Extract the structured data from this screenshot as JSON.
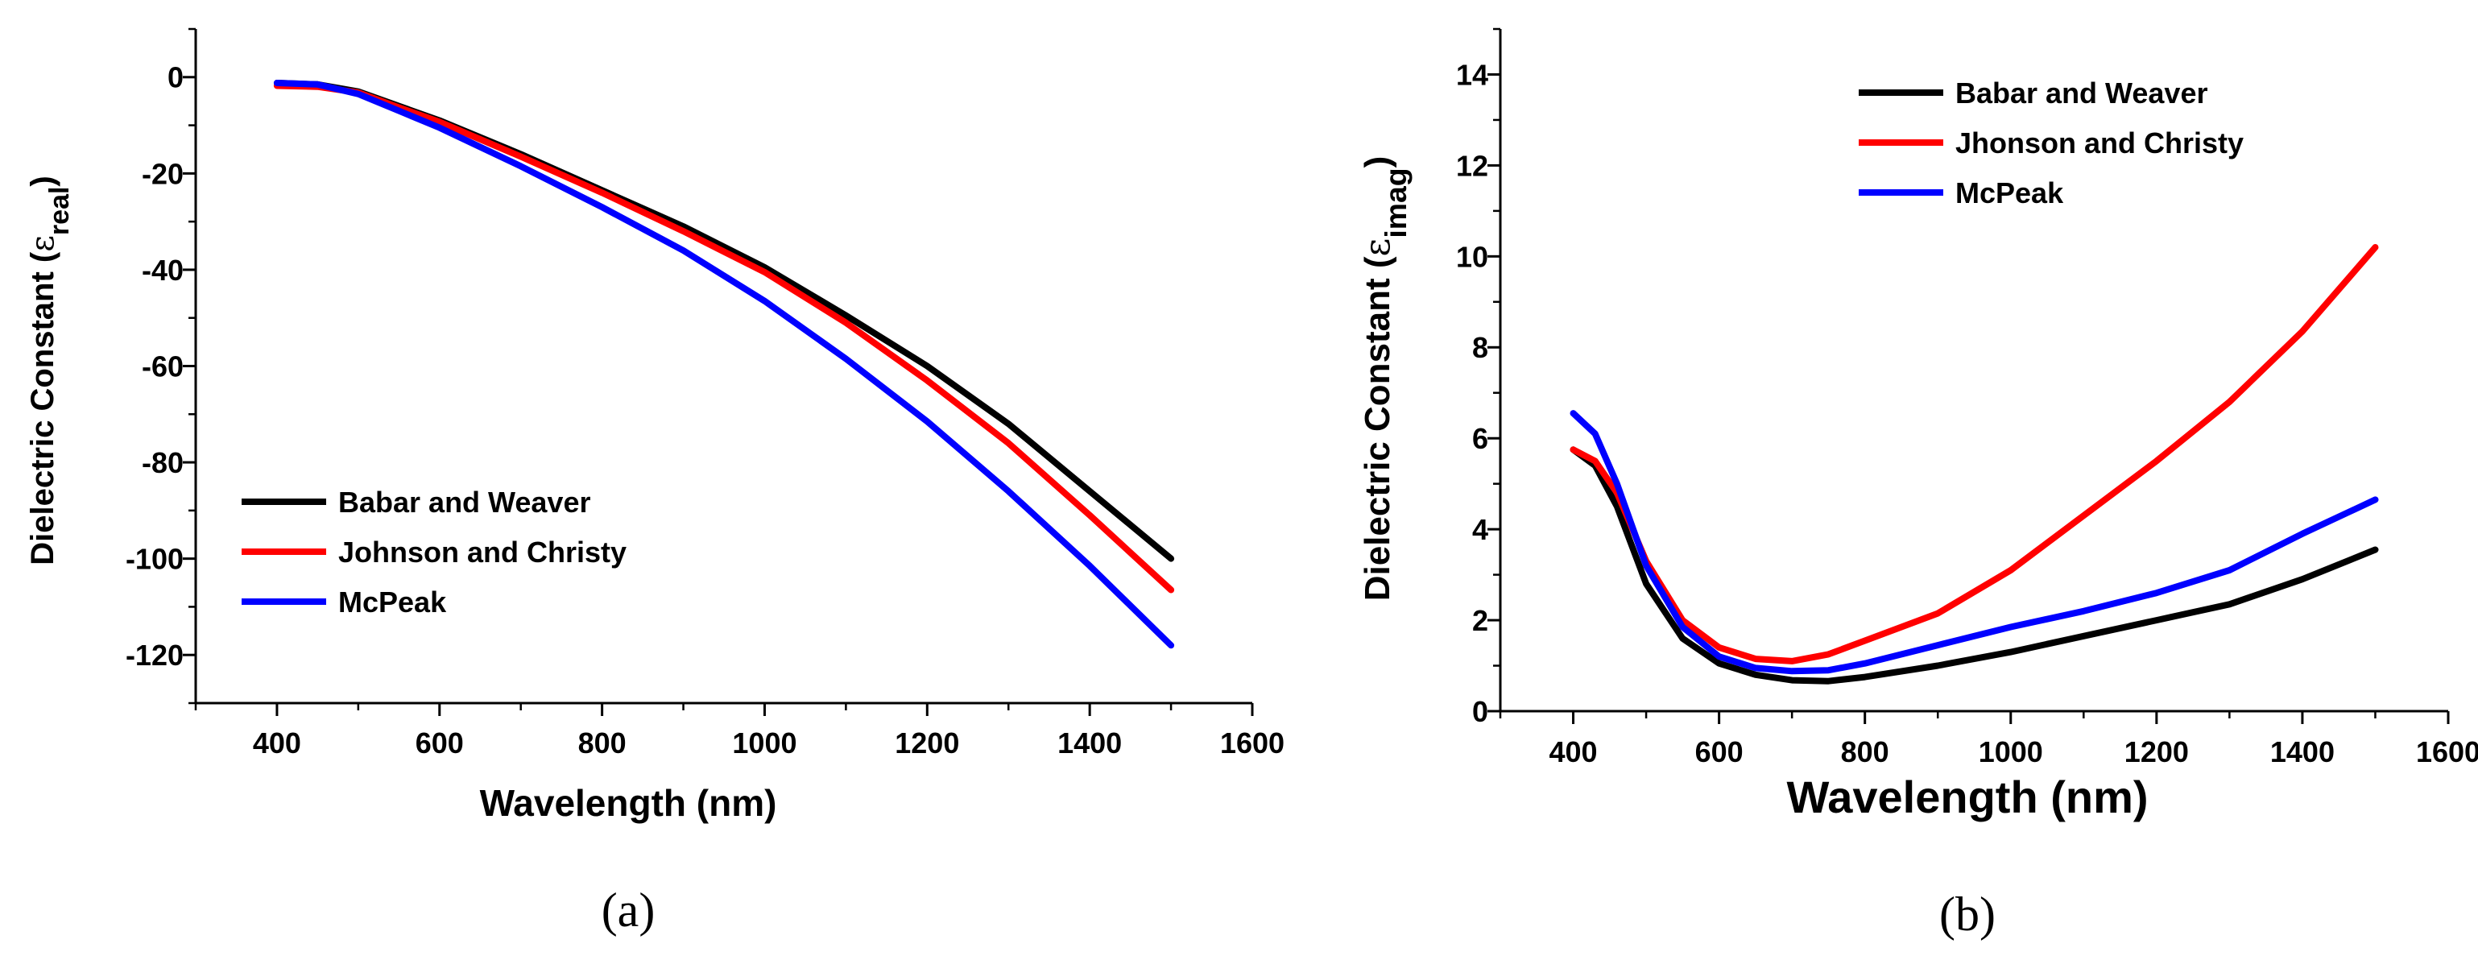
{
  "chart_data": [
    {
      "type": "line",
      "caption": "(a)",
      "xlabel": "Wavelength (nm)",
      "ylabel_main": "Dielectric Constant (",
      "ylabel_symbol": "ε",
      "ylabel_sub": "real",
      "ylabel_close": ")",
      "xlim": [
        300,
        1600
      ],
      "ylim": [
        -130,
        10
      ],
      "xticks": [
        400,
        600,
        800,
        1000,
        1200,
        1400,
        1600
      ],
      "yticks": [
        0,
        -20,
        -40,
        -60,
        -80,
        -100,
        -120
      ],
      "x_minor_step": 100,
      "y_minor_step": 10,
      "legend_position": "bottom-left",
      "series": [
        {
          "name": "Babar and Weaver",
          "color": "#000000",
          "x": [
            400,
            450,
            500,
            550,
            600,
            700,
            800,
            900,
            1000,
            1100,
            1200,
            1300,
            1400,
            1500
          ],
          "values": [
            -1.2,
            -1.5,
            -3,
            -6,
            -9,
            -16,
            -23.5,
            -31,
            -39.5,
            -49.5,
            -60,
            -72,
            -86,
            -100
          ]
        },
        {
          "name": "Johnson and Christy",
          "color": "#ff0000",
          "x": [
            400,
            450,
            500,
            550,
            600,
            700,
            800,
            900,
            1000,
            1100,
            1200,
            1300,
            1400,
            1500
          ],
          "values": [
            -1.8,
            -2,
            -3.2,
            -6.3,
            -9.3,
            -16.5,
            -24,
            -32,
            -40.5,
            -51,
            -63,
            -76,
            -91,
            -106.5
          ]
        },
        {
          "name": "McPeak",
          "color": "#0000ff",
          "x": [
            400,
            450,
            500,
            550,
            600,
            700,
            800,
            900,
            1000,
            1100,
            1200,
            1300,
            1400,
            1500
          ],
          "values": [
            -1.2,
            -1.5,
            -3.5,
            -7,
            -10.5,
            -18.5,
            -27,
            -36,
            -46.5,
            -58.5,
            -71.5,
            -86,
            -101.5,
            -118
          ]
        }
      ]
    },
    {
      "type": "line",
      "caption": "(b)",
      "xlabel": "Wavelength (nm)",
      "ylabel_main": "Dielectric Constant (",
      "ylabel_symbol": "ε",
      "ylabel_sub": "imag",
      "ylabel_close": ")",
      "xlim": [
        300,
        1600
      ],
      "ylim": [
        0,
        15
      ],
      "xticks": [
        400,
        600,
        800,
        1000,
        1200,
        1400,
        1600
      ],
      "yticks": [
        0,
        2,
        4,
        6,
        8,
        10,
        12,
        14
      ],
      "x_minor_step": 100,
      "y_minor_step": 1,
      "legend_position": "top-left",
      "series": [
        {
          "name": "Babar and Weaver",
          "color": "#000000",
          "x": [
            400,
            430,
            460,
            500,
            550,
            600,
            650,
            700,
            750,
            800,
            900,
            1000,
            1100,
            1200,
            1300,
            1400,
            1500
          ],
          "values": [
            5.75,
            5.4,
            4.5,
            2.8,
            1.6,
            1.05,
            0.8,
            0.68,
            0.66,
            0.75,
            1.0,
            1.3,
            1.65,
            2.0,
            2.35,
            2.9,
            3.55
          ]
        },
        {
          "name": "Jhonson and Christy",
          "color": "#ff0000",
          "x": [
            400,
            430,
            460,
            500,
            550,
            600,
            650,
            700,
            750,
            800,
            900,
            1000,
            1100,
            1200,
            1300,
            1400,
            1500
          ],
          "values": [
            5.75,
            5.5,
            4.8,
            3.3,
            2.0,
            1.4,
            1.15,
            1.1,
            1.25,
            1.55,
            2.15,
            3.1,
            4.3,
            5.5,
            6.8,
            8.35,
            10.2
          ]
        },
        {
          "name": "McPeak",
          "color": "#0000ff",
          "x": [
            400,
            430,
            460,
            500,
            550,
            600,
            650,
            700,
            750,
            800,
            900,
            1000,
            1100,
            1200,
            1300,
            1400,
            1500
          ],
          "values": [
            6.55,
            6.1,
            5.0,
            3.2,
            1.85,
            1.2,
            0.95,
            0.88,
            0.9,
            1.05,
            1.45,
            1.85,
            2.2,
            2.6,
            3.1,
            3.9,
            4.65
          ]
        }
      ]
    }
  ]
}
